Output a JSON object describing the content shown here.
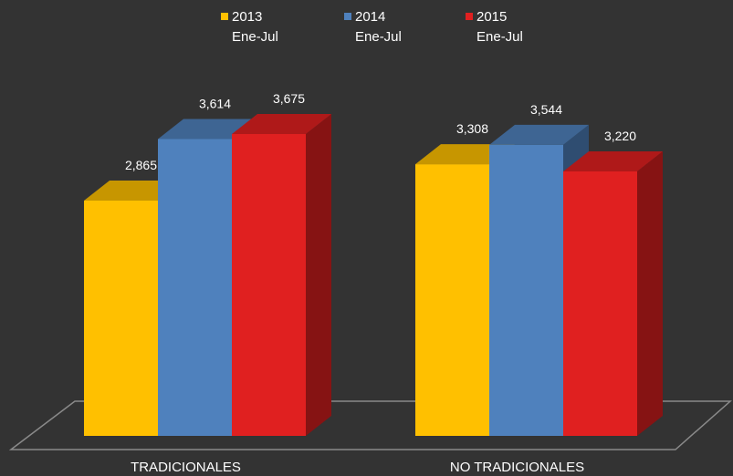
{
  "chart_data": {
    "type": "bar3d",
    "categories": [
      "TRADICIONALES",
      "NO TRADICIONALES"
    ],
    "series": [
      {
        "name": "2013\nEne-Jul",
        "color": "#ffc000",
        "values": [
          2865,
          3308
        ],
        "value_labels": [
          "2,865",
          "3,308"
        ]
      },
      {
        "name": "2014\nEne-Jul",
        "color": "#4f81bd",
        "values": [
          3614,
          3544
        ],
        "value_labels": [
          "3,614",
          "3,544"
        ]
      },
      {
        "name": "2015\nEne-Jul",
        "color": "#e02020",
        "values": [
          3675,
          3220
        ],
        "value_labels": [
          "3,675",
          "3,220"
        ]
      }
    ]
  }
}
